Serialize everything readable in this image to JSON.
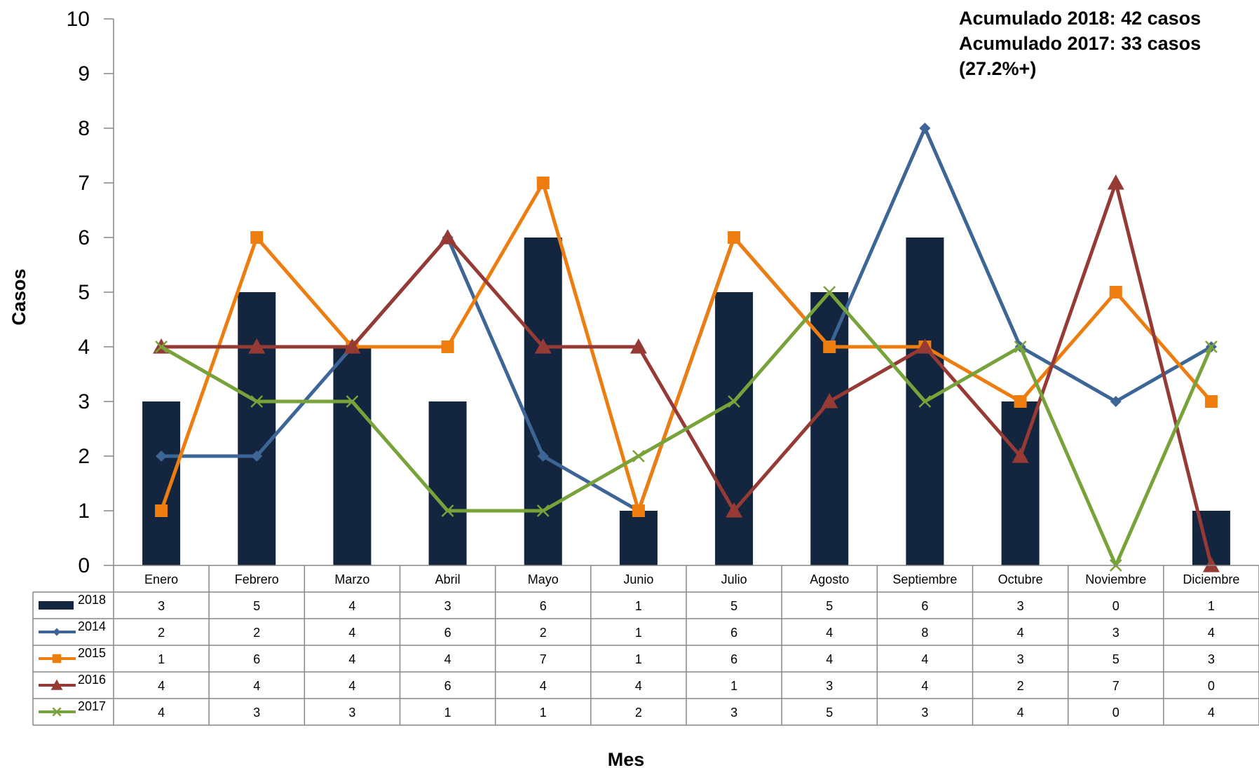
{
  "chart_data": {
    "type": "bar+line",
    "xlabel": "Mes",
    "ylabel": "Casos",
    "ylim": [
      0,
      10
    ],
    "yticks": [
      "0",
      "1",
      "2",
      "3",
      "4",
      "5",
      "6",
      "7",
      "8",
      "9",
      "10"
    ],
    "grid": false,
    "legend_placement": "data-table-left",
    "categories": [
      "Enero",
      "Febrero",
      "Marzo",
      "Abril",
      "Mayo",
      "Junio",
      "Julio",
      "Agosto",
      "Septiembre",
      "Octubre",
      "Noviembre",
      "Diciembre"
    ],
    "series": [
      {
        "name": "2018",
        "kind": "bar",
        "color": "#14253f",
        "marker": "none",
        "values": [
          3,
          5,
          4,
          3,
          6,
          1,
          5,
          5,
          6,
          3,
          0,
          1
        ]
      },
      {
        "name": "2014",
        "kind": "line",
        "color": "#3d6696",
        "marker": "diamond",
        "values": [
          2,
          2,
          4,
          6,
          2,
          1,
          6,
          4,
          8,
          4,
          3,
          4
        ]
      },
      {
        "name": "2015",
        "kind": "line",
        "color": "#ee7d10",
        "marker": "square",
        "values": [
          1,
          6,
          4,
          4,
          7,
          1,
          6,
          4,
          4,
          3,
          5,
          3
        ]
      },
      {
        "name": "2016",
        "kind": "line",
        "color": "#953a35",
        "marker": "triangle",
        "values": [
          4,
          4,
          4,
          6,
          4,
          4,
          1,
          3,
          4,
          2,
          7,
          0
        ]
      },
      {
        "name": "2017",
        "kind": "line",
        "color": "#78a23a",
        "marker": "x",
        "values": [
          4,
          3,
          3,
          1,
          1,
          2,
          3,
          5,
          3,
          4,
          0,
          4
        ]
      }
    ],
    "annotations": [
      "Acumulado 2018:  42 casos",
      "Acumulado 2017:  33 casos",
      "(27.2%+)"
    ]
  }
}
